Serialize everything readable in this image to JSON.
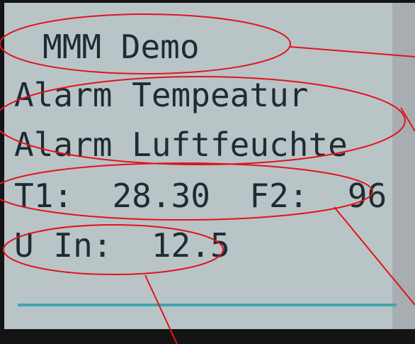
{
  "screen": {
    "title": "MMM Demo",
    "lines": [
      "Alarm Tempeatur",
      "Alarm Luftfeuchte",
      "T1:  28.30  F2:  96",
      "U In:  12.5"
    ]
  }
}
